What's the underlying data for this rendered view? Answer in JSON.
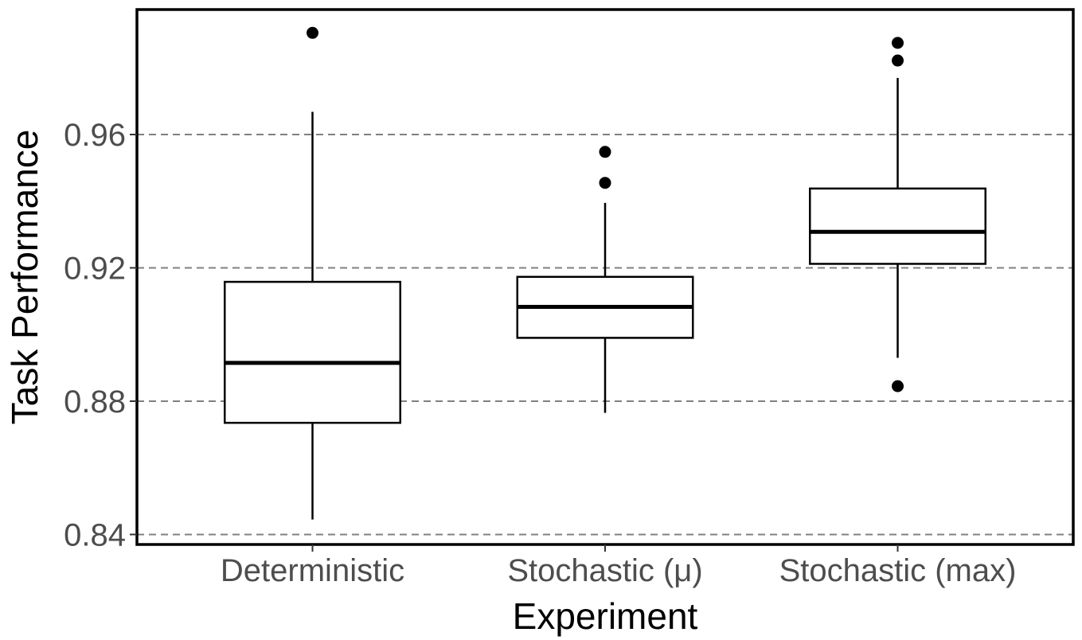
{
  "chart_data": {
    "type": "boxplot",
    "title": "",
    "xlabel": "Experiment",
    "ylabel": "Task Performance",
    "ylim": [
      0.837,
      0.9975
    ],
    "y_ticks": [
      0.84,
      0.88,
      0.92,
      0.96
    ],
    "y_tick_labels": [
      "0.84",
      "0.88",
      "0.92",
      "0.96"
    ],
    "grid": "horizontal dashed major gridlines",
    "legend": "none",
    "categories": [
      "Deterministic",
      "Stochastic (μ)",
      "Stochastic (max)"
    ],
    "boxes": [
      {
        "category": "Deterministic",
        "whisker_low": 0.8445,
        "q1": 0.8735,
        "median": 0.8915,
        "q3": 0.9158,
        "whisker_high": 0.9668,
        "outliers": [
          0.9905
        ]
      },
      {
        "category": "Stochastic (μ)",
        "whisker_low": 0.8765,
        "q1": 0.899,
        "median": 0.9083,
        "q3": 0.9173,
        "whisker_high": 0.9395,
        "outliers": [
          0.9455,
          0.9548
        ]
      },
      {
        "category": "Stochastic (max)",
        "whisker_low": 0.893,
        "q1": 0.9212,
        "median": 0.9308,
        "q3": 0.9438,
        "whisker_high": 0.977,
        "outliers": [
          0.8845,
          0.9822,
          0.9875
        ]
      }
    ],
    "colors": {
      "box_fill": "#ffffff",
      "box_stroke": "#000000",
      "grid": "#808080",
      "panel_border": "#000000",
      "tick_text": "#4d4d4d",
      "title_text": "#000000"
    }
  }
}
